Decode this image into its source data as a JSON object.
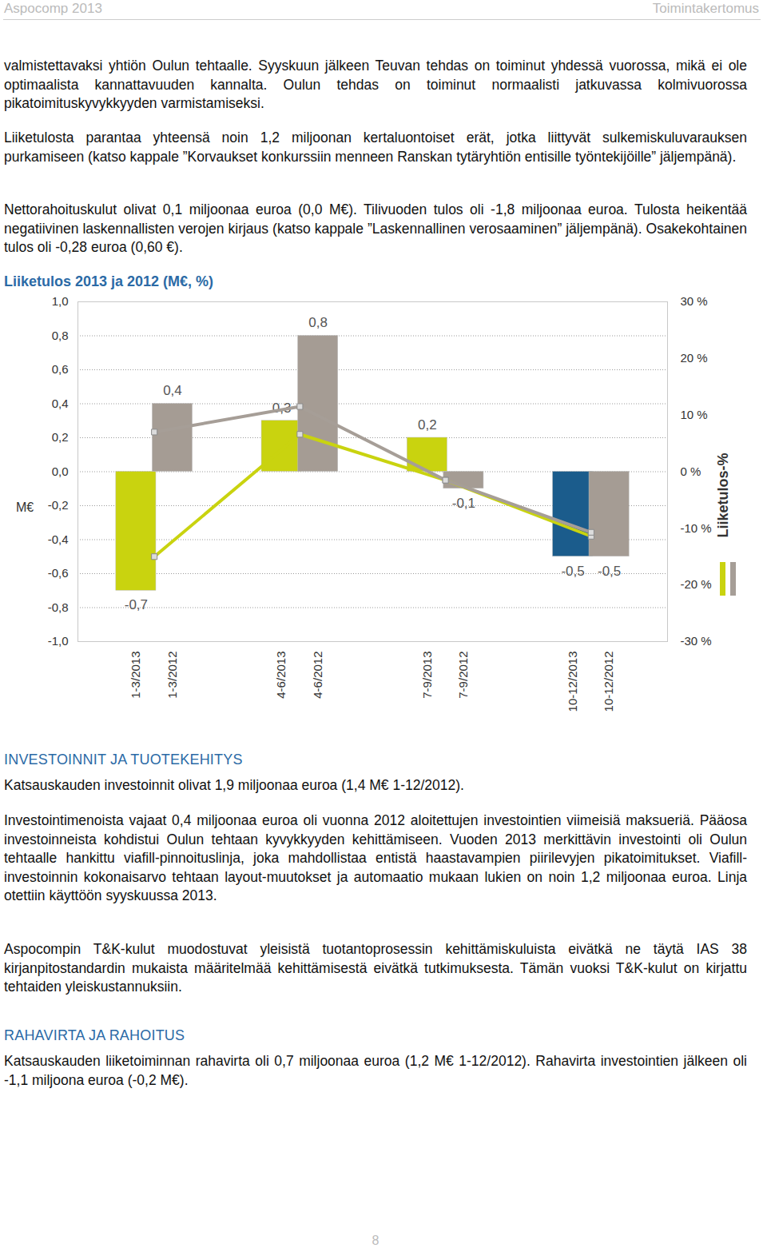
{
  "header": {
    "left": "Aspocomp 2013",
    "right": "Toimintakertomus"
  },
  "paragraphs_top": [
    "valmistettavaksi yhtiön Oulun tehtaalle. Syyskuun jälkeen Teuvan tehdas on toiminut yhdessä vuorossa, mikä ei ole optimaalista kannattavuuden kannalta. Oulun tehdas on toiminut normaalisti jatkuvassa kolmivuorossa pikatoimituskyvykkyyden varmistamiseksi.",
    "Liiketulosta parantaa yhteensä noin 1,2 miljoonan kertaluontoiset erät, jotka liittyvät sulkemiskuluvarauksen purkamiseen (katso kappale ”Korvaukset konkurssiin menneen Ranskan tytäryhtiön entisille työntekijöille” jäljempänä).",
    "Nettorahoituskulut olivat 0,1 miljoonaa euroa (0,0 M€). Tilivuoden tulos oli -1,8 miljoonaa euroa. Tulosta heikentää negatiivinen laskennallisten verojen kirjaus (katso kappale ”Laskennallinen verosaaminen” jäljempänä). Osakekohtainen tulos oli -0,28 euroa (0,60 €)."
  ],
  "chart_data": {
    "type": "bar",
    "title": "Liiketulos 2013 ja 2012 (M€, %)",
    "y_label": "M€",
    "y2_label": "Liiketulos-%",
    "categories": [
      "1-3/2013",
      "1-3/2012",
      "4-6/2013",
      "4-6/2012",
      "7-9/2013",
      "7-9/2012",
      "10-12/2013",
      "10-12/2012"
    ],
    "values": [
      -0.7,
      0.4,
      0.3,
      0.8,
      0.2,
      -0.1,
      -0.5,
      -0.5
    ],
    "value_labels": [
      "-0,7",
      "0,4",
      "0,3",
      "0,8",
      "0,2",
      "-0,1",
      "-0,5",
      "-0,5"
    ],
    "colors": [
      "#c9d30f",
      "#a59c94",
      "#c9d30f",
      "#a59c94",
      "#c9d30f",
      "#a59c94",
      "#1b5c8c",
      "#a59c94"
    ],
    "data_labels": true,
    "grid": true,
    "ylim": [
      -1,
      1
    ],
    "yticks": [
      {
        "value": -1,
        "label": "-1,0"
      },
      {
        "value": -0.8,
        "label": "-0,8"
      },
      {
        "value": -0.6,
        "label": "-0,6"
      },
      {
        "value": -0.4,
        "label": "-0,4"
      },
      {
        "value": -0.2,
        "label": "-0,2"
      },
      {
        "value": 0,
        "label": "0,0"
      },
      {
        "value": 0.2,
        "label": "0,2"
      },
      {
        "value": 0.4,
        "label": "0,4"
      },
      {
        "value": 0.6,
        "label": "0,6"
      },
      {
        "value": 0.8,
        "label": "0,8"
      },
      {
        "value": 1,
        "label": "1,0"
      }
    ],
    "y2lim": [
      -30,
      30
    ],
    "y2ticks": [
      {
        "value": -30,
        "label": "-30 %"
      },
      {
        "value": -20,
        "label": "-20 %"
      },
      {
        "value": -10,
        "label": "-10 %"
      },
      {
        "value": 0,
        "label": "0 %"
      },
      {
        "value": 10,
        "label": "10 %"
      },
      {
        "value": 20,
        "label": "20 %"
      },
      {
        "value": 30,
        "label": "30 %"
      }
    ],
    "series": [
      {
        "type": "line",
        "axis": "y2",
        "color": "#c9d30f",
        "marker": "square",
        "values": [
          -15,
          null,
          6.6,
          null,
          -1.5,
          null,
          -11.4,
          null
        ]
      },
      {
        "type": "line",
        "axis": "y2",
        "color": "#a69e97",
        "marker": "square",
        "values": [
          7,
          null,
          11.5,
          null,
          -1.5,
          null,
          -10.7,
          null
        ]
      }
    ]
  },
  "sections": [
    {
      "heading": "INVESTOINNIT JA TUOTEKEHITYS",
      "paragraphs": [
        "Katsauskauden investoinnit olivat 1,9 miljoonaa euroa (1,4 M€ 1-12/2012).",
        "Investointimenoista vajaat 0,4 miljoonaa euroa oli vuonna 2012 aloitettujen investointien viimeisiä maksueriä. Pääosa investoinneista kohdistui Oulun tehtaan kyvykkyyden kehittämiseen. Vuoden 2013 merkittävin investointi oli Oulun tehtaalle hankittu viafill-pinnoituslinja, joka mahdollistaa entistä haastavampien piirilevyjen pikatoimitukset. Viafill-investoinnin kokonaisarvo tehtaan layout-muutokset ja automaatio mukaan lukien on noin 1,2 miljoonaa euroa. Linja otettiin käyttöön syyskuussa 2013.",
        "Aspocompin T&K-kulut muodostuvat yleisistä tuotantoprosessin kehittämiskuluista eivätkä ne täytä IAS 38 kirjanpitostandardin mukaista määritelmää kehittämisestä eivätkä tutkimuksesta. Tämän vuoksi T&K-kulut on kirjattu tehtaiden yleiskustannuksiin."
      ]
    },
    {
      "heading": "RAHAVIRTA JA RAHOITUS",
      "paragraphs": [
        "Katsauskauden liiketoiminnan rahavirta oli 0,7 miljoonaa euroa (1,2 M€ 1-12/2012). Rahavirta investointien jälkeen oli -1,1 miljoona euroa (-0,2 M€)."
      ]
    }
  ],
  "page_number": "8"
}
